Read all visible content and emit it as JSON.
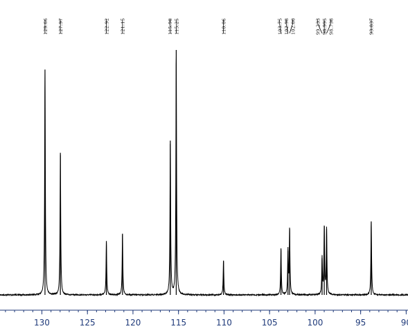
{
  "chart_data": {
    "type": "line",
    "title": "",
    "xlabel": "",
    "ylabel": "",
    "x_unit": "ppm",
    "xlim": [
      134.6,
      89.8
    ],
    "x_direction": "reversed",
    "y_axis_shown": false,
    "grid": false,
    "axis_color": "#1f3a7a",
    "trace_color": "#000000",
    "x_ticks": [
      130,
      125,
      120,
      115,
      110,
      105,
      100,
      95,
      90
    ],
    "x_tick_labels": [
      "130",
      "125",
      "120",
      "115",
      "110",
      "105",
      "100",
      "95",
      "90"
    ],
    "peaks": [
      {
        "x": 129.66,
        "intensity": 0.92,
        "label": "129.66"
      },
      {
        "x": 127.97,
        "intensity": 0.58,
        "label": "127.97"
      },
      {
        "x": 122.92,
        "intensity": 0.22,
        "label": "122.92"
      },
      {
        "x": 121.15,
        "intensity": 0.25,
        "label": "121.15"
      },
      {
        "x": 115.9,
        "intensity": 0.63,
        "label": "115.90"
      },
      {
        "x": 115.25,
        "intensity": 1.0,
        "label": "115.25"
      },
      {
        "x": 110.06,
        "intensity": 0.14,
        "label": "110.06"
      },
      {
        "x": 103.75,
        "intensity": 0.19,
        "label": "103.75"
      },
      {
        "x": 102.98,
        "intensity": 0.18,
        "label": "102.98"
      },
      {
        "x": 102.8,
        "intensity": 0.27,
        "label": "102.80"
      },
      {
        "x": 99.233,
        "intensity": 0.15,
        "label": "99.233"
      },
      {
        "x": 98.995,
        "intensity": 0.28,
        "label": "98.995"
      },
      {
        "x": 98.738,
        "intensity": 0.27,
        "label": "98.738"
      },
      {
        "x": 93.837,
        "intensity": 0.3,
        "label": "93.837"
      }
    ]
  }
}
